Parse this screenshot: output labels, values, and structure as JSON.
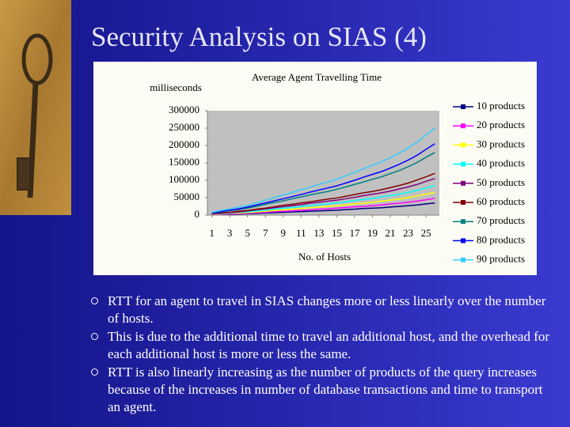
{
  "slide": {
    "title": "Security Analysis on SIAS (4)",
    "bullets": [
      "RTT for an agent to travel in SIAS changes more or less linearly over the number of hosts.",
      "This is due to the additional time to travel an additional host, and the overhead for each additional host is more or less the same.",
      "RTT is also linearly increasing as the number of products of the query increases because of the increases in number of database transactions and time to transport an agent."
    ]
  },
  "chart_data": {
    "type": "line",
    "title": "Average Agent Travelling Time",
    "y_label": "milliseconds",
    "x_label": "No. of Hosts",
    "x": [
      1,
      2,
      3,
      4,
      5,
      6,
      7,
      8,
      9,
      10,
      11,
      12,
      13,
      14,
      15,
      16,
      17,
      18,
      19,
      20,
      21,
      22,
      23,
      24,
      25,
      26
    ],
    "xlim": [
      0.5,
      26.5
    ],
    "xticks": [
      1,
      3,
      5,
      7,
      9,
      11,
      13,
      15,
      17,
      19,
      21,
      23,
      25
    ],
    "ylim": [
      0,
      300000
    ],
    "yticks": [
      0,
      50000,
      100000,
      150000,
      200000,
      250000,
      300000
    ],
    "grid": false,
    "legend": "right",
    "series": [
      {
        "name": "10 products",
        "color": "#000080",
        "values": [
          1000,
          2000,
          2000,
          3000,
          4000,
          5000,
          6000,
          7000,
          8000,
          9000,
          10000,
          11000,
          12000,
          13000,
          14000,
          16000,
          17000,
          19000,
          20000,
          21000,
          23000,
          25000,
          27000,
          29000,
          32000,
          35000
        ]
      },
      {
        "name": "20 products",
        "color": "#ff00ff",
        "values": [
          1000,
          2000,
          3000,
          4000,
          5000,
          7000,
          8000,
          10000,
          11000,
          12000,
          14000,
          15000,
          17000,
          18000,
          20000,
          22000,
          24000,
          25000,
          27000,
          29000,
          32000,
          34000,
          37000,
          40000,
          44000,
          48000
        ]
      },
      {
        "name": "30 products",
        "color": "#ffff00",
        "values": [
          2000,
          3000,
          5000,
          6000,
          7000,
          9000,
          11000,
          13000,
          15000,
          17000,
          19000,
          21000,
          23000,
          25000,
          27000,
          29000,
          32000,
          34000,
          37000,
          40000,
          43000,
          46000,
          50000,
          55000,
          60000,
          65000
        ]
      },
      {
        "name": "40 products",
        "color": "#00ffff",
        "values": [
          3000,
          4000,
          6000,
          8000,
          9000,
          12000,
          14000,
          17000,
          20000,
          22000,
          25000,
          27000,
          30000,
          32000,
          35000,
          38000,
          42000,
          45000,
          48000,
          52000,
          56000,
          60000,
          65000,
          71000,
          78000,
          85000
        ]
      },
      {
        "name": "50 products",
        "color": "#800080",
        "values": [
          3000,
          5000,
          7000,
          9000,
          12000,
          15000,
          18000,
          21000,
          24000,
          27000,
          30000,
          34000,
          37000,
          40000,
          43000,
          47000,
          51000,
          56000,
          60000,
          64000,
          69000,
          75000,
          81000,
          88000,
          97000,
          105000
        ]
      },
      {
        "name": "60 products",
        "color": "#800000",
        "values": [
          4000,
          6000,
          8000,
          11000,
          13000,
          17000,
          20000,
          24000,
          28000,
          31000,
          35000,
          38000,
          42000,
          46000,
          49000,
          54000,
          59000,
          64000,
          68000,
          73000,
          79000,
          85000,
          92000,
          101000,
          110000,
          120000
        ]
      },
      {
        "name": "70 products",
        "color": "#008080",
        "values": [
          5000,
          9000,
          13000,
          16000,
          20000,
          25000,
          31000,
          36000,
          41000,
          47000,
          52000,
          58000,
          63000,
          68000,
          74000,
          81000,
          88000,
          95000,
          103000,
          110000,
          119000,
          128000,
          139000,
          151000,
          166000,
          180000
        ]
      },
      {
        "name": "80 products",
        "color": "#0000ff",
        "values": [
          6000,
          10000,
          14000,
          18000,
          23000,
          29000,
          35000,
          41000,
          47000,
          53000,
          59000,
          66000,
          72000,
          78000,
          84000,
          92000,
          100000,
          109000,
          117000,
          125000,
          135000,
          146000,
          158000,
          172000,
          189000,
          205000
        ]
      },
      {
        "name": "90 products",
        "color": "#33ccff",
        "values": [
          8000,
          13000,
          18000,
          23000,
          28000,
          35000,
          43000,
          50000,
          58000,
          65000,
          73000,
          80000,
          88000,
          95000,
          103000,
          113000,
          123000,
          133000,
          143000,
          153000,
          165000,
          178000,
          193000,
          210000,
          230000,
          250000
        ]
      }
    ]
  }
}
